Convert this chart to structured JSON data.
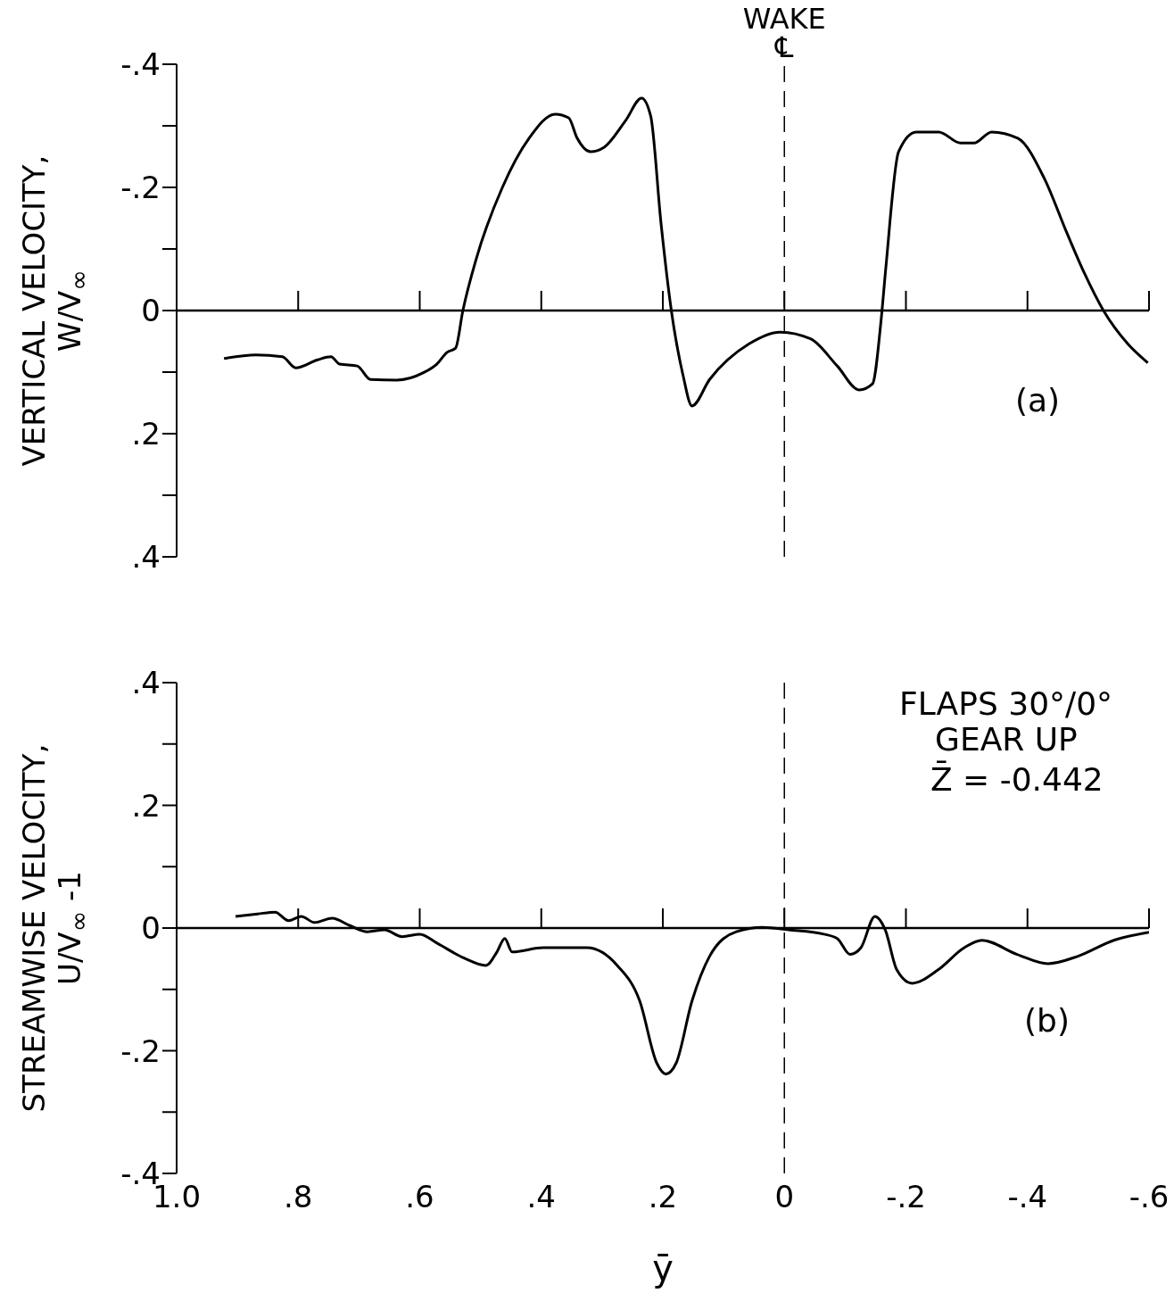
{
  "chart_data": [
    {
      "type": "line",
      "ylabel": "VERTICAL VELOCITY,\nW/V$_{∞}$",
      "xlim": [
        1.0,
        -0.6
      ],
      "ylim": [
        0.4,
        -0.4
      ],
      "xticks": [
        {
          "value": 0.8,
          "label": null
        },
        {
          "value": 0.6,
          "label": null
        },
        {
          "value": 0.4,
          "label": null
        },
        {
          "value": 0.2,
          "label": null
        },
        {
          "value": 0,
          "label": null
        },
        {
          "value": -0.2,
          "label": null
        },
        {
          "value": -0.4,
          "label": null
        },
        {
          "value": -0.6,
          "label": null
        }
      ],
      "yticks": [
        {
          "value": -0.4,
          "label": "-.4"
        },
        {
          "value": -0.3,
          "label": null
        },
        {
          "value": -0.2,
          "label": "-.2"
        },
        {
          "value": -0.1,
          "label": null
        },
        0,
        {
          "value": 0.1,
          "label": null
        },
        {
          "value": 0.2,
          "label": ".2"
        },
        {
          "value": 0.3,
          "label": null
        },
        {
          "value": 0.4,
          "label": ".4"
        }
      ],
      "tick_labels": "y",
      "ref_lines": [
        {
          "axis": "x",
          "value": 0,
          "label": "WAKE\n℄",
          "line_style": "dashed"
        }
      ],
      "annotations": [
        "(a)"
      ],
      "series": [
        {
          "color": "#000000",
          "x": [
            0.922,
            0.87,
            0.826,
            0.804,
            0.768,
            0.746,
            0.732,
            0.703,
            0.681,
            0.638,
            0.594,
            0.572,
            0.555,
            0.541,
            0.529,
            0.507,
            0.464,
            0.42,
            0.377,
            0.355,
            0.341,
            0.319,
            0.297,
            0.261,
            0.235,
            0.22,
            0.203,
            0.186,
            0.167,
            0.152,
            0.123,
            0.058,
            0.007,
            -0.043,
            -0.087,
            -0.123,
            -0.145,
            -0.159,
            -0.167,
            -0.188,
            -0.217,
            -0.254,
            -0.29,
            -0.312,
            -0.341,
            -0.384,
            -0.428,
            -0.464,
            -0.493,
            -0.525,
            -0.565,
            -0.598
          ],
          "values": [
            0.078,
            0.072,
            0.075,
            0.093,
            0.08,
            0.075,
            0.087,
            0.09,
            0.112,
            0.113,
            0.101,
            0.087,
            0.068,
            0.061,
            0,
            -0.084,
            -0.2,
            -0.28,
            -0.319,
            -0.313,
            -0.28,
            -0.258,
            -0.265,
            -0.309,
            -0.345,
            -0.316,
            -0.142,
            0,
            0.104,
            0.155,
            0.112,
            0.054,
            0.035,
            0.046,
            0.09,
            0.129,
            0.119,
            0.017,
            -0.07,
            -0.258,
            -0.29,
            -0.29,
            -0.272,
            -0.272,
            -0.29,
            -0.28,
            -0.214,
            -0.128,
            -0.062,
            0,
            0.054,
            0.085
          ]
        }
      ]
    },
    {
      "type": "line",
      "ylabel": "STREAMWISE VELOCITY,\nU/V$_{∞}$ -1",
      "xlabel": "ȳ",
      "xlim": [
        1.0,
        -0.6
      ],
      "ylim": [
        -0.4,
        0.4
      ],
      "xticks": [
        {
          "value": 1.0,
          "label": "1.0"
        },
        {
          "value": 0.8,
          "label": ".8"
        },
        {
          "value": 0.6,
          "label": ".6"
        },
        {
          "value": 0.4,
          "label": ".4"
        },
        {
          "value": 0.2,
          "label": ".2"
        },
        0,
        {
          "value": -0.2,
          "label": "-.2"
        },
        {
          "value": -0.4,
          "label": "-.4"
        },
        {
          "value": -0.6,
          "label": "-.6"
        }
      ],
      "yticks": [
        {
          "value": -0.4,
          "label": "-.4"
        },
        {
          "value": -0.3,
          "label": null
        },
        {
          "value": -0.2,
          "label": "-.2"
        },
        {
          "value": -0.1,
          "label": null
        },
        0,
        {
          "value": 0.1,
          "label": null
        },
        {
          "value": 0.2,
          "label": ".2"
        },
        {
          "value": 0.3,
          "label": null
        },
        {
          "value": 0.4,
          "label": ".4"
        }
      ],
      "ref_lines": [
        {
          "axis": "x",
          "value": 0,
          "line_style": "dashed"
        }
      ],
      "annotations": [
        "FLAPS 30°/0°",
        "GEAR UP",
        "Z̄ = -0.442",
        "(b)"
      ],
      "series": [
        {
          "color": "#000000",
          "x": [
            0.903,
            0.867,
            0.838,
            0.816,
            0.795,
            0.773,
            0.744,
            0.715,
            0.686,
            0.658,
            0.629,
            0.6,
            0.571,
            0.527,
            0.491,
            0.473,
            0.46,
            0.448,
            0.397,
            0.325,
            0.275,
            0.238,
            0.21,
            0.195,
            0.178,
            0.152,
            0.123,
            0.079,
            0.036,
            -0.007,
            -0.065,
            -0.087,
            -0.108,
            -0.126,
            -0.149,
            -0.166,
            -0.185,
            -0.21,
            -0.253,
            -0.296,
            -0.325,
            -0.383,
            -0.434,
            -0.483,
            -0.542,
            -0.6
          ],
          "values": [
            0.019,
            0.023,
            0.026,
            0.012,
            0.019,
            0.009,
            0.016,
            0.004,
            -0.006,
            -0.003,
            -0.014,
            -0.01,
            -0.025,
            -0.049,
            -0.061,
            -0.039,
            -0.017,
            -0.039,
            -0.032,
            -0.032,
            -0.061,
            -0.119,
            -0.22,
            -0.238,
            -0.22,
            -0.119,
            -0.046,
            -0.006,
            0.001,
            -0.003,
            -0.01,
            -0.017,
            -0.043,
            -0.032,
            0.019,
            -0.003,
            -0.068,
            -0.09,
            -0.068,
            -0.032,
            -0.02,
            -0.043,
            -0.058,
            -0.046,
            -0.02,
            -0.007
          ]
        }
      ]
    }
  ]
}
